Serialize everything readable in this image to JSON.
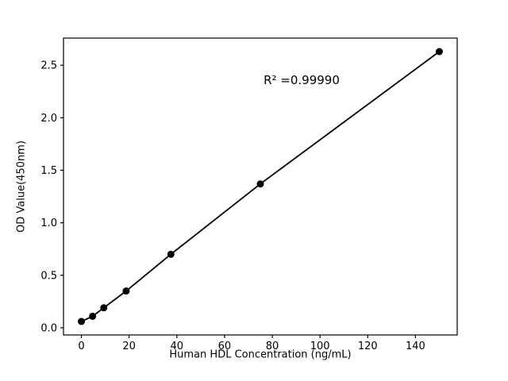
{
  "chart_data": {
    "type": "scatter",
    "title": "",
    "xlabel": "Human HDL Concentration (ng/mL)",
    "ylabel": "OD Value(450nm)",
    "annotation": "R² =0.99990",
    "x": [
      0,
      4.69,
      9.38,
      18.75,
      37.5,
      75,
      150
    ],
    "y": [
      0.06,
      0.11,
      0.19,
      0.35,
      0.7,
      1.37,
      2.63
    ],
    "xlim": [
      -7.5,
      157.5
    ],
    "ylim": [
      -0.0685,
      2.7585
    ],
    "xticks": [
      0,
      20,
      40,
      60,
      80,
      100,
      120,
      140
    ],
    "yticks": [
      0.0,
      0.5,
      1.0,
      1.5,
      2.0,
      2.5
    ],
    "grid": false,
    "legend_position": "none",
    "line_color": "#000000",
    "marker_color": "#000000",
    "background_color": "#ffffff"
  }
}
